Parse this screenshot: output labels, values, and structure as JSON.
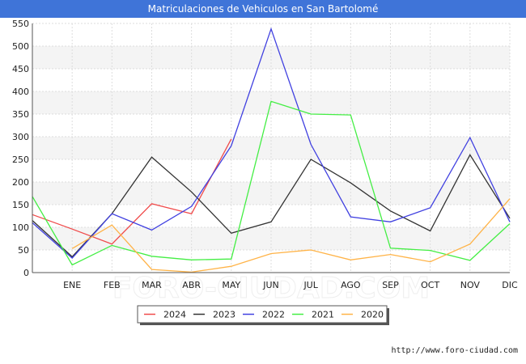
{
  "chart_data": {
    "type": "line",
    "title": "Matriculaciones de Vehiculos en San Bartolomé",
    "xlabel": "",
    "ylabel": "",
    "categories": [
      "",
      "ENE",
      "FEB",
      "MAR",
      "ABR",
      "MAY",
      "JUN",
      "JUL",
      "AGO",
      "SEP",
      "OCT",
      "NOV",
      "DIC"
    ],
    "ylim": [
      0,
      550
    ],
    "yticks": [
      0,
      50,
      100,
      150,
      200,
      250,
      300,
      350,
      400,
      450,
      500,
      550
    ],
    "grid": true,
    "legend_position": "bottom-center",
    "series": [
      {
        "name": "2024",
        "color": "#f04a4a",
        "values": [
          128,
          96,
          63,
          152,
          130,
          295,
          null,
          null,
          null,
          null,
          null,
          null,
          null
        ]
      },
      {
        "name": "2023",
        "color": "#333333",
        "values": [
          115,
          35,
          130,
          255,
          178,
          87,
          112,
          250,
          198,
          136,
          92,
          260,
          120
        ]
      },
      {
        "name": "2022",
        "color": "#4040e0",
        "values": [
          110,
          32,
          130,
          94,
          146,
          280,
          538,
          283,
          123,
          112,
          143,
          298,
          112
        ]
      },
      {
        "name": "2021",
        "color": "#44ee44",
        "values": [
          168,
          17,
          60,
          36,
          28,
          30,
          378,
          350,
          348,
          54,
          49,
          27,
          108
        ]
      },
      {
        "name": "2020",
        "color": "#ffb347",
        "values": [
          null,
          53,
          105,
          7,
          1,
          14,
          42,
          50,
          28,
          40,
          24,
          63,
          163
        ]
      }
    ]
  },
  "watermark": "FORO-CIUDAD.COM",
  "footer": {
    "url": "http://www.foro-ciudad.com"
  }
}
